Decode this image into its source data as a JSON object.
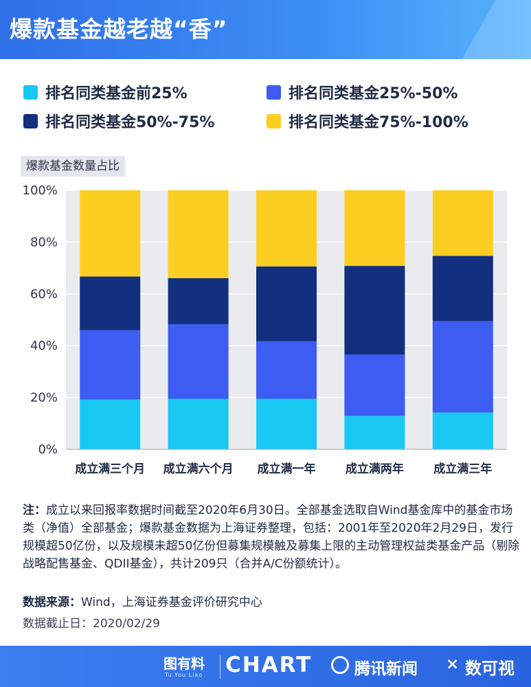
{
  "header": {
    "title": "爆款基金越老越“香”"
  },
  "legend": [
    {
      "label": "排名同类基金前25%",
      "color": "#1ac8f4"
    },
    {
      "label": "排名同类基金25%-50%",
      "color": "#3d5cf2"
    },
    {
      "label": "排名同类基金50%-75%",
      "color": "#12307f"
    },
    {
      "label": "排名同类基金75%-100%",
      "color": "#fdce22"
    }
  ],
  "chart_data": {
    "type": "bar",
    "stacked": true,
    "subtitle": "爆款基金数量占比",
    "categories": [
      "成立满三个月",
      "成立满六个月",
      "成立满一年",
      "成立满两年",
      "成立满三年"
    ],
    "series": [
      {
        "name": "排名同类基金前25%",
        "color": "#1ac8f4",
        "values": [
          19.2,
          19.5,
          19.5,
          12.9,
          14.2
        ]
      },
      {
        "name": "排名同类基金25%-50%",
        "color": "#3d5cf2",
        "values": [
          26.8,
          28.8,
          22.2,
          23.7,
          35.3
        ]
      },
      {
        "name": "排名同类基金50%-75%",
        "color": "#12307f",
        "values": [
          20.7,
          17.8,
          28.9,
          34.2,
          25.2
        ]
      },
      {
        "name": "排名同类基金75%-100%",
        "color": "#fdce22",
        "values": [
          33.3,
          33.9,
          29.4,
          29.2,
          25.3
        ]
      }
    ],
    "y_ticks": [
      "100%",
      "80%",
      "60%",
      "40%",
      "20%",
      "0%"
    ],
    "ylim": [
      0,
      100
    ],
    "grid": true
  },
  "notes": {
    "head": "注：",
    "text": "成立以来回报率数据时间截至2020年6月30日。全部基金选取自Wind基金库中的基金市场类（净值）全部基金；爆款基金数据为上海证券整理，包括：2001年至2020年2月29日，发行规模超50亿份，以及规模未超50亿份但募集规模触及募集上限的主动管理权益类基金产品（剔除战略配售基金、QDII基金），共计209只（合并A/C份额统计）。"
  },
  "source": {
    "head": "数据来源：",
    "text": "Wind，上海证券基金评价研究中心"
  },
  "cutoff": "数据截止日：2020/02/29",
  "footer": {
    "logo1": "图有料",
    "logo1_sub": "Tu You Liao",
    "chart_word": "CHART",
    "news": "腾讯新闻",
    "times": "×",
    "logo3": "数可视"
  }
}
